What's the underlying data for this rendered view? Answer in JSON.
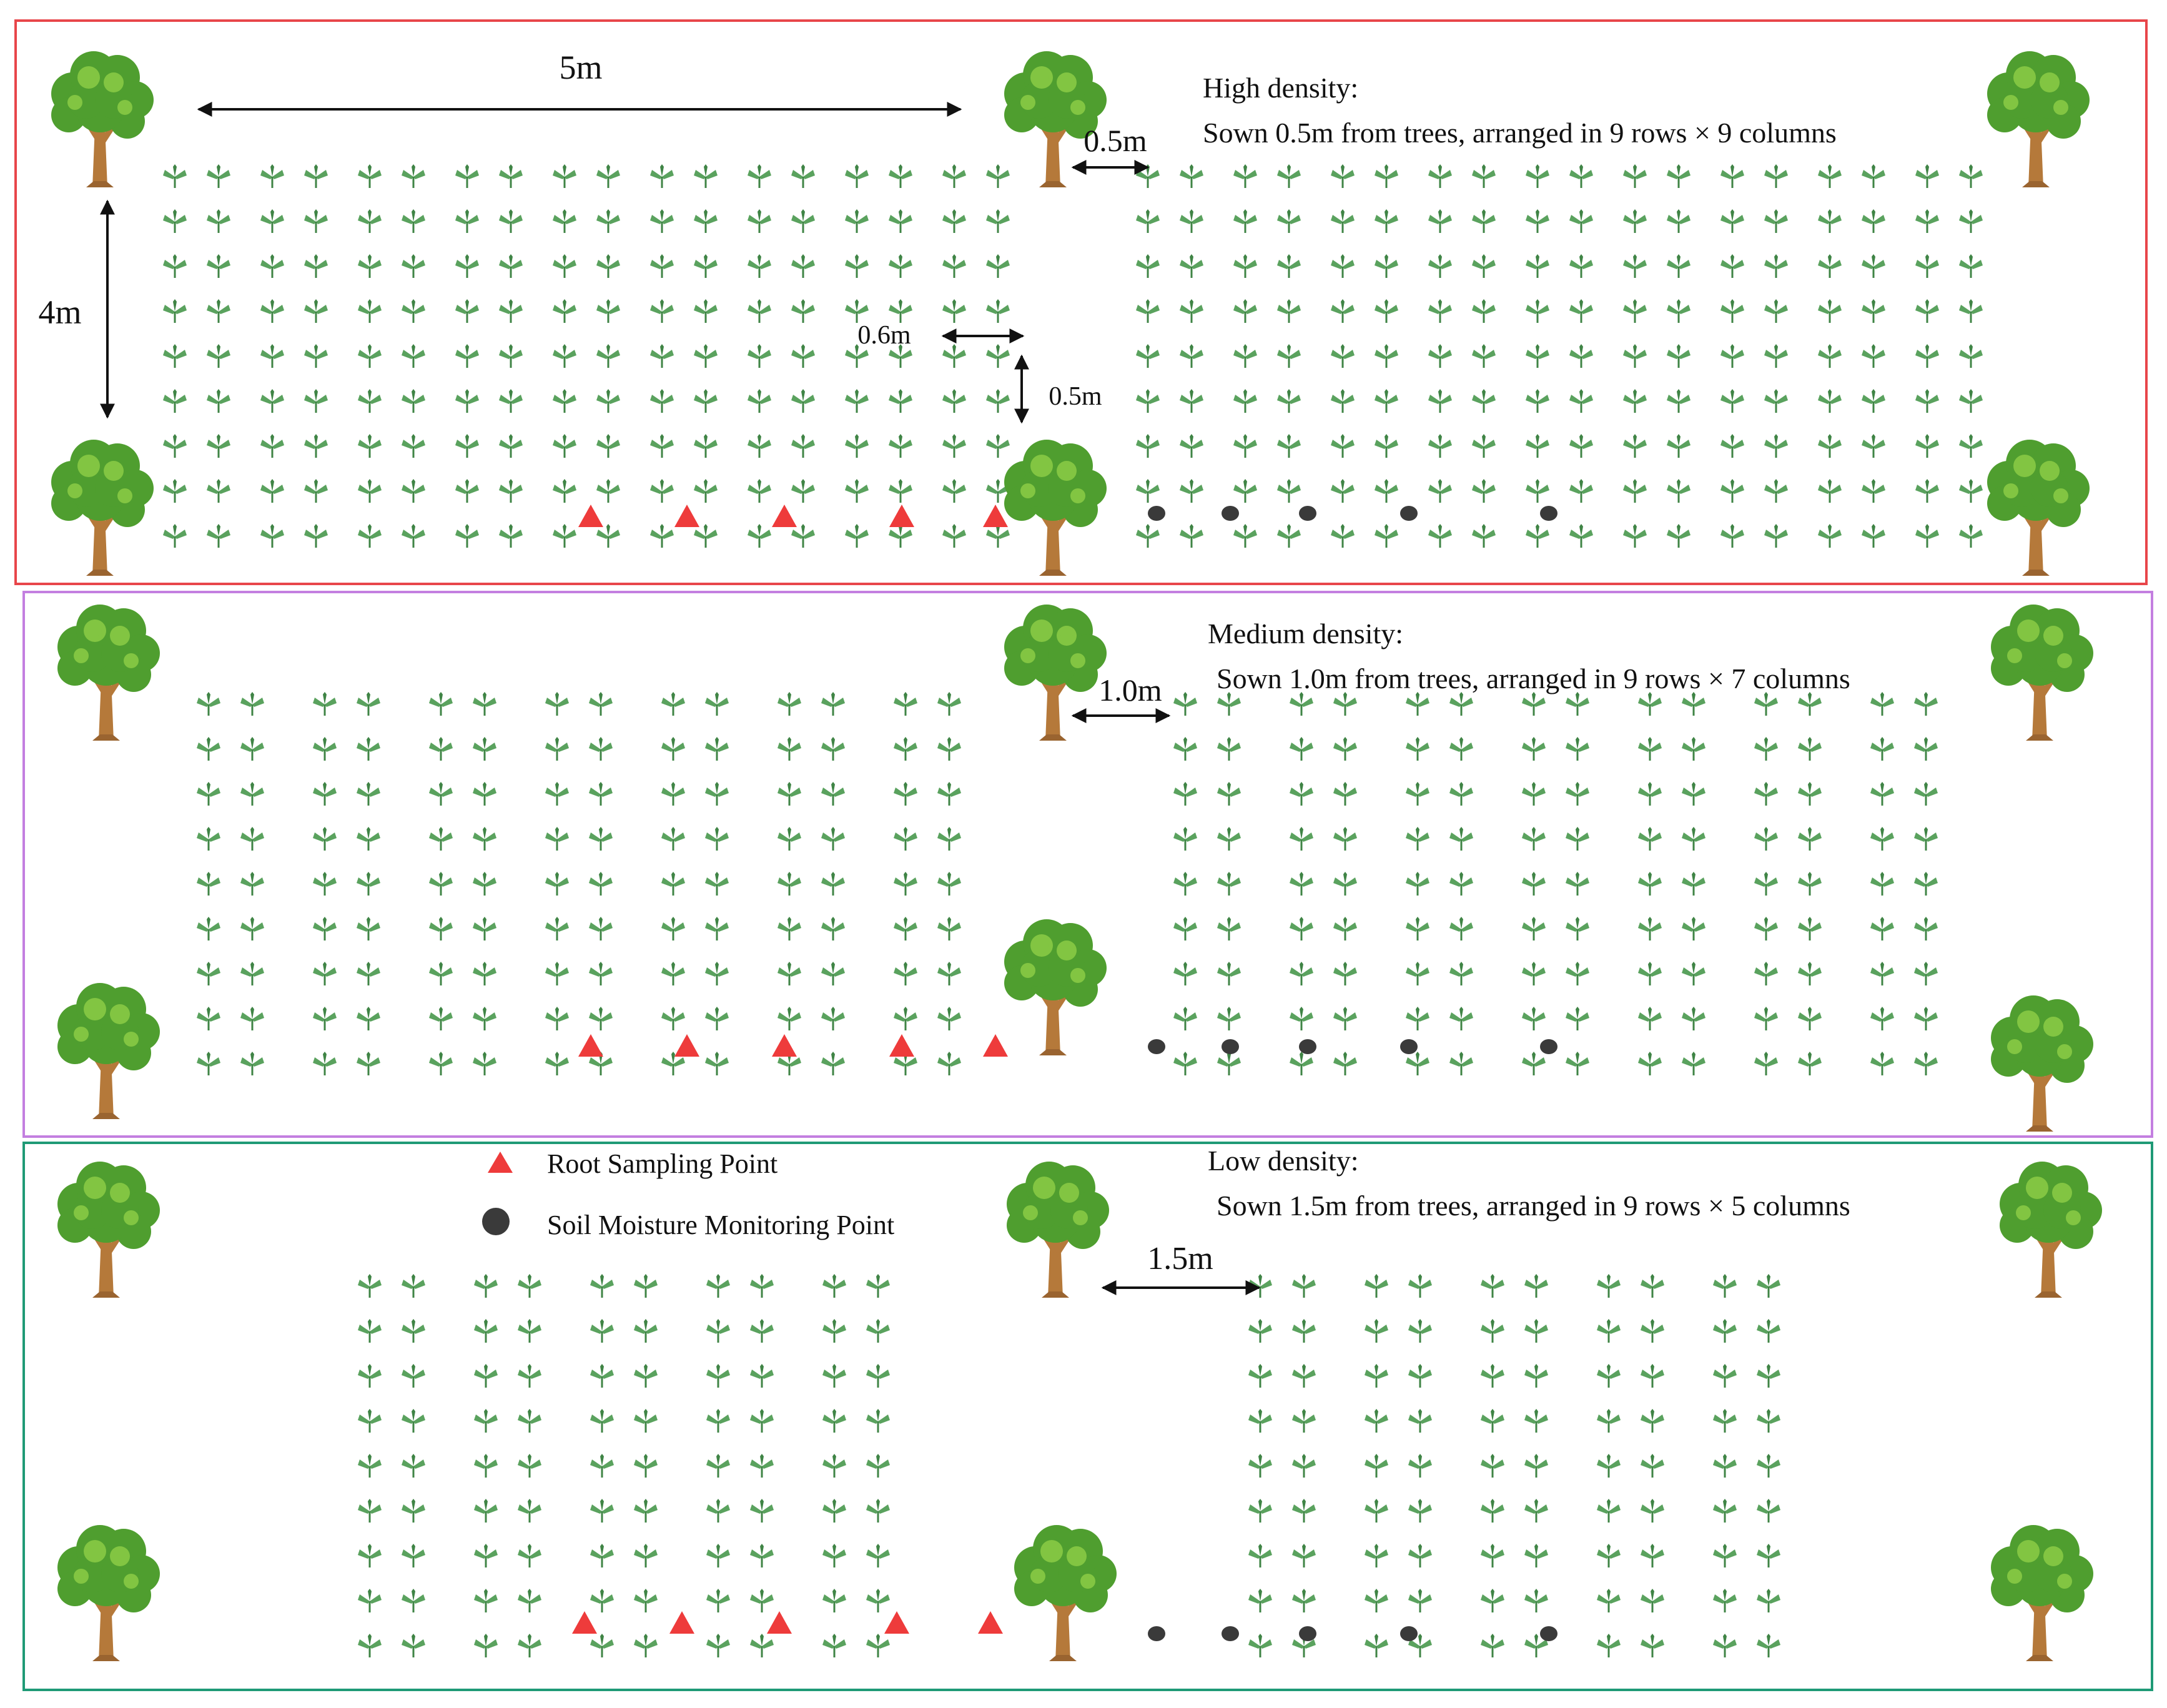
{
  "colors": {
    "high_border": "#e8464a",
    "medium_border": "#c37fe0",
    "low_border": "#1f9a76",
    "plant": "#5aa25e",
    "plant_dark": "#3f8445",
    "root_marker": "#ee3b3b",
    "soil_marker": "#3a3a3a",
    "tree_trunk": "#b5793a",
    "tree_canopy": "#4f9e2f",
    "tree_canopy_light": "#8bcb45",
    "arrow": "#111111"
  },
  "icons": {
    "plant": "seedling-icon",
    "tree": "tree-icon",
    "root_point": "red-triangle-marker",
    "soil_point": "dark-circle-marker"
  },
  "panels": [
    {
      "id": "high",
      "title": "High density:",
      "description": "Sown 0.5m from trees, arranged in 9 rows × 9 columns",
      "gap_label": "0.5m",
      "rows": 9,
      "columns": 9
    },
    {
      "id": "medium",
      "title": "Medium density:",
      "description": "Sown 1.0m from trees, arranged in 9 rows × 7 columns",
      "gap_label": "1.0m",
      "rows": 9,
      "columns": 7
    },
    {
      "id": "low",
      "title": "Low density:",
      "description": "Sown 1.5m from trees, arranged in 9 rows × 5 columns",
      "gap_label": "1.5m",
      "rows": 9,
      "columns": 5
    }
  ],
  "dimensions": {
    "tree_spacing_x": "5m",
    "tree_spacing_y": "4m",
    "plant_spacing_x": "0.6m",
    "plant_spacing_y": "0.5m"
  },
  "legend": {
    "root_label": "Root Sampling Point",
    "soil_label": "Soil Moisture Monitoring Point"
  }
}
